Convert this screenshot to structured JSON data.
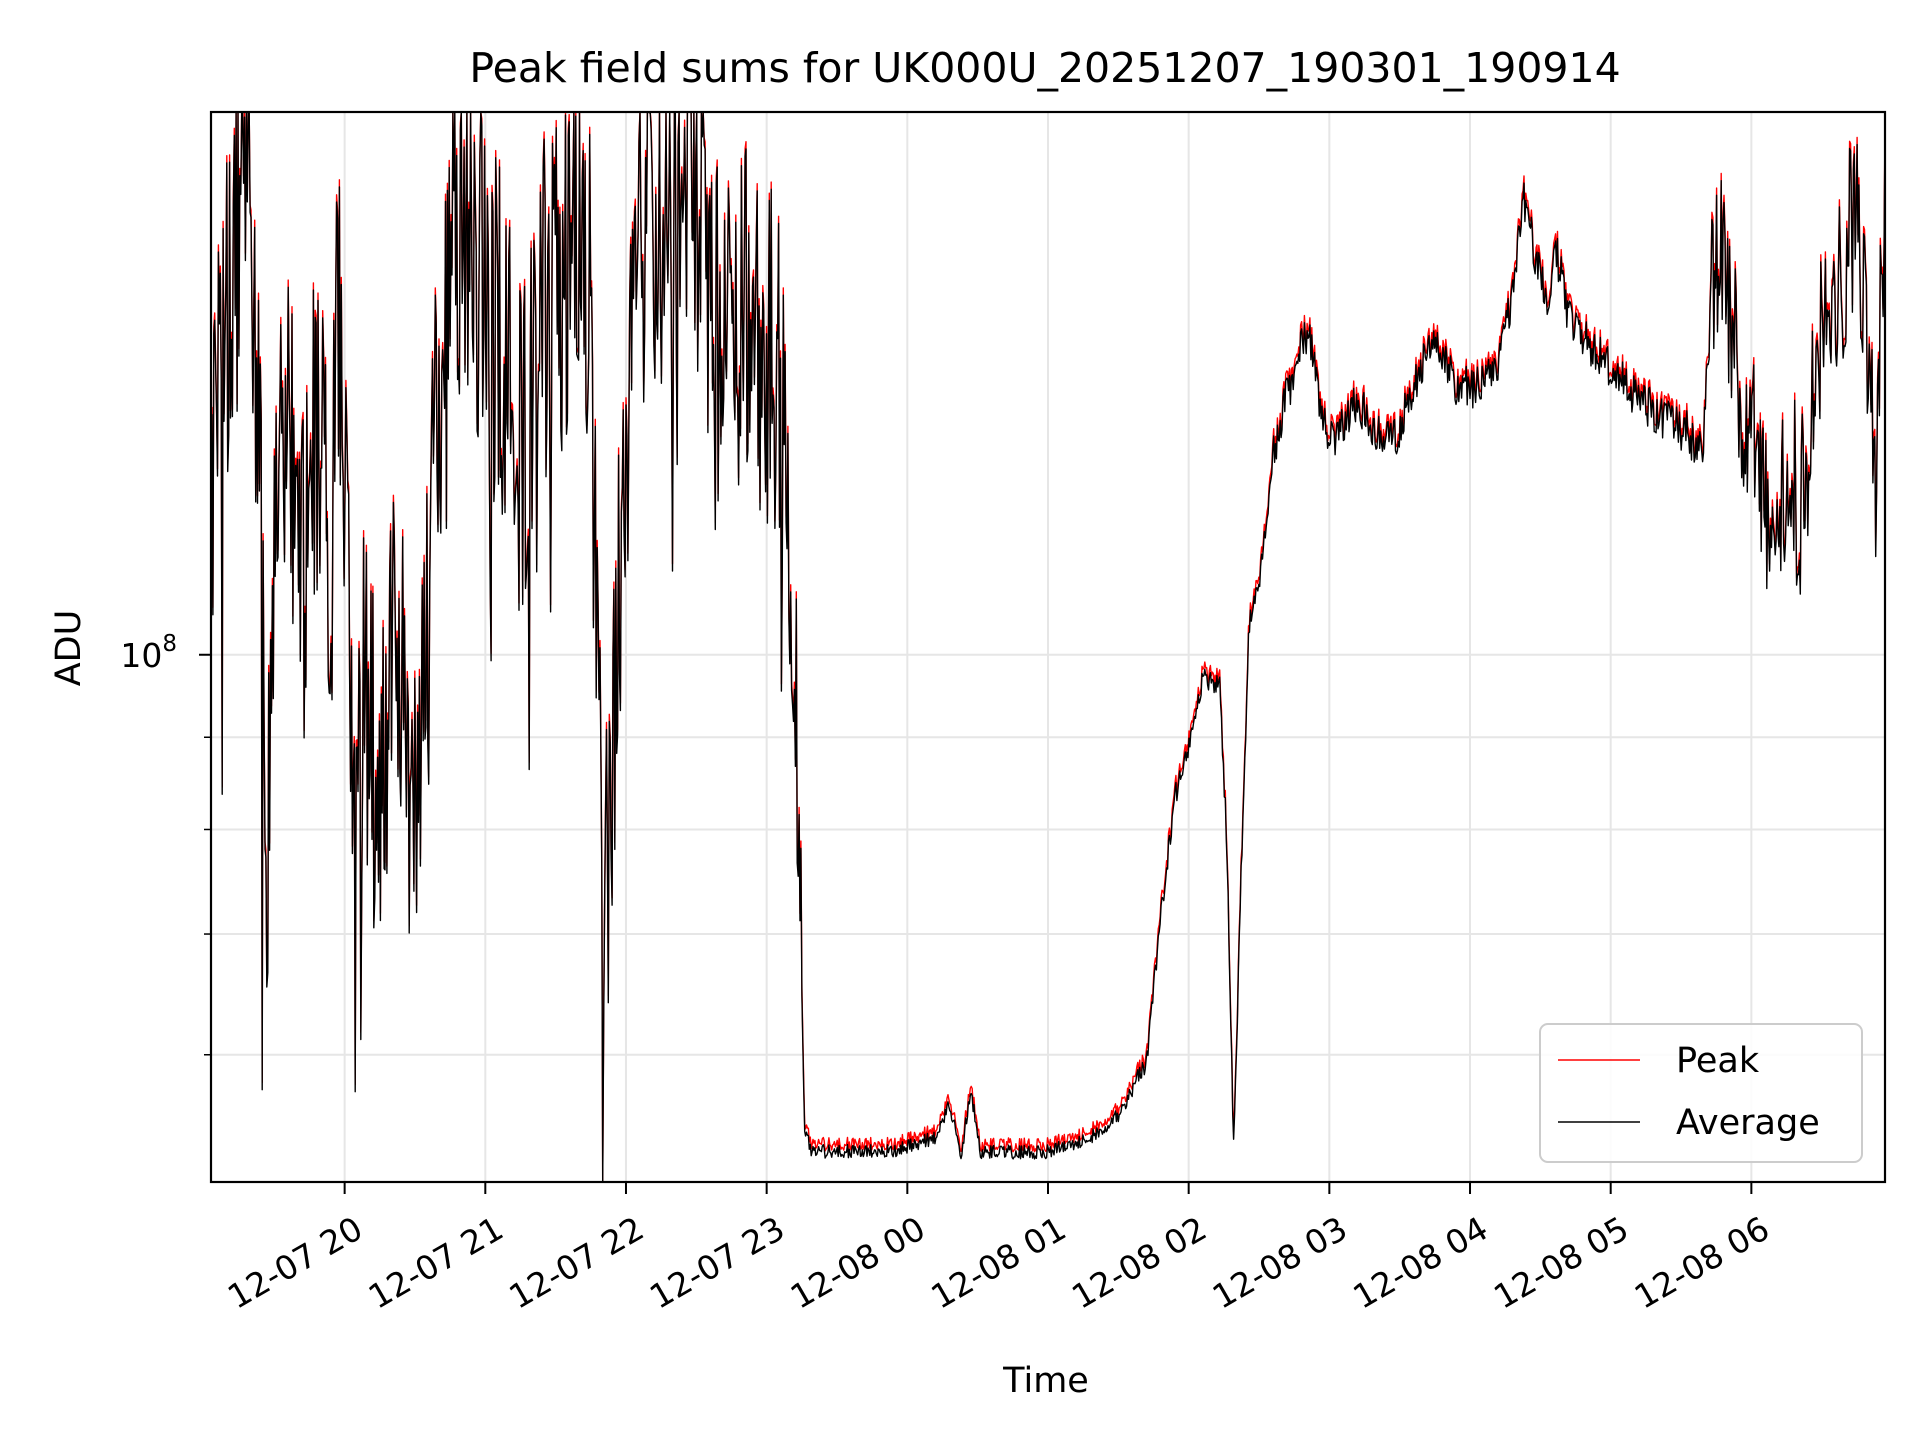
{
  "chart_data": {
    "type": "line",
    "title": "Peak field sums for UK000U_20251207_190301_190914",
    "xlabel": "Time",
    "ylabel": "ADU",
    "yscale": "log",
    "ylim": [
      51000000,
      200000000
    ],
    "xlim_hours": [
      19.05,
      30.95
    ],
    "grid": true,
    "legend_position": "lower-right",
    "x_ticks": [
      {
        "hour": 20,
        "label": "12-07 20"
      },
      {
        "hour": 21,
        "label": "12-07 21"
      },
      {
        "hour": 22,
        "label": "12-07 22"
      },
      {
        "hour": 23,
        "label": "12-07 23"
      },
      {
        "hour": 24,
        "label": "12-08 00"
      },
      {
        "hour": 25,
        "label": "12-08 01"
      },
      {
        "hour": 26,
        "label": "12-08 02"
      },
      {
        "hour": 27,
        "label": "12-08 03"
      },
      {
        "hour": 28,
        "label": "12-08 04"
      },
      {
        "hour": 29,
        "label": "12-08 05"
      },
      {
        "hour": 30,
        "label": "12-08 06"
      }
    ],
    "y_major_ticks": [
      {
        "value": 100000000,
        "label_base": "10",
        "label_exp": "8"
      }
    ],
    "y_minor_ticks": [
      60000000,
      70000000,
      80000000,
      90000000
    ],
    "series": [
      {
        "name": "Peak",
        "color": "#ff0000",
        "offset": 0.0
      },
      {
        "name": "Average",
        "color": "#000000",
        "offset": -0.004
      }
    ],
    "profile": [
      [
        19.05,
        120000000.0
      ],
      [
        19.1,
        135000000.0
      ],
      [
        19.15,
        155000000.0
      ],
      [
        19.2,
        165000000.0
      ],
      [
        19.25,
        185000000.0
      ],
      [
        19.3,
        190000000.0
      ],
      [
        19.35,
        170000000.0
      ],
      [
        19.4,
        120000000.0
      ],
      [
        19.45,
        75000000.0
      ],
      [
        19.5,
        105000000.0
      ],
      [
        19.55,
        130000000.0
      ],
      [
        19.6,
        140000000.0
      ],
      [
        19.7,
        110000000.0
      ],
      [
        19.8,
        135000000.0
      ],
      [
        19.9,
        110000000.0
      ],
      [
        19.95,
        155000000.0
      ],
      [
        20.0,
        125000000.0
      ],
      [
        20.05,
        85000000.0
      ],
      [
        20.15,
        95000000.0
      ],
      [
        20.25,
        80000000.0
      ],
      [
        20.35,
        110000000.0
      ],
      [
        20.45,
        85000000.0
      ],
      [
        20.55,
        95000000.0
      ],
      [
        20.65,
        130000000.0
      ],
      [
        20.75,
        170000000.0
      ],
      [
        20.85,
        180000000.0
      ],
      [
        20.95,
        165000000.0
      ],
      [
        21.05,
        155000000.0
      ],
      [
        21.15,
        145000000.0
      ],
      [
        21.25,
        130000000.0
      ],
      [
        21.35,
        150000000.0
      ],
      [
        21.45,
        160000000.0
      ],
      [
        21.55,
        165000000.0
      ],
      [
        21.65,
        170000000.0
      ],
      [
        21.75,
        155000000.0
      ],
      [
        21.8,
        95000000.0
      ],
      [
        21.85,
        70000000.0
      ],
      [
        21.9,
        90000000.0
      ],
      [
        21.95,
        105000000.0
      ],
      [
        22.05,
        165000000.0
      ],
      [
        22.15,
        175000000.0
      ],
      [
        22.25,
        165000000.0
      ],
      [
        22.35,
        180000000.0
      ],
      [
        22.45,
        190000000.0
      ],
      [
        22.55,
        175000000.0
      ],
      [
        22.65,
        150000000.0
      ],
      [
        22.75,
        145000000.0
      ],
      [
        22.85,
        155000000.0
      ],
      [
        22.95,
        145000000.0
      ],
      [
        23.05,
        150000000.0
      ],
      [
        23.15,
        130000000.0
      ],
      [
        23.22,
        85000000.0
      ],
      [
        23.27,
        55000000.0
      ],
      [
        23.32,
        53500000.0
      ],
      [
        23.6,
        53500000.0
      ],
      [
        23.9,
        53500000.0
      ],
      [
        24.2,
        54500000.0
      ],
      [
        24.3,
        57000000.0
      ],
      [
        24.38,
        53000000.0
      ],
      [
        24.45,
        58000000.0
      ],
      [
        24.52,
        53500000.0
      ],
      [
        25.0,
        53500000.0
      ],
      [
        25.3,
        54500000.0
      ],
      [
        25.5,
        56000000.0
      ],
      [
        25.7,
        60000000.0
      ],
      [
        25.8,
        72000000.0
      ],
      [
        25.9,
        84000000.0
      ],
      [
        26.0,
        90000000.0
      ],
      [
        26.1,
        98000000.0
      ],
      [
        26.22,
        97000000.0
      ],
      [
        26.27,
        80000000.0
      ],
      [
        26.32,
        53500000.0
      ],
      [
        26.37,
        75000000.0
      ],
      [
        26.43,
        105000000.0
      ],
      [
        26.5,
        110000000.0
      ],
      [
        26.6,
        130000000.0
      ],
      [
        26.65,
        136000000.0
      ],
      [
        26.75,
        145000000.0
      ],
      [
        26.82,
        152000000.0
      ],
      [
        26.88,
        150000000.0
      ],
      [
        26.95,
        136000000.0
      ],
      [
        27.05,
        133000000.0
      ],
      [
        27.2,
        140000000.0
      ],
      [
        27.3,
        135000000.0
      ],
      [
        27.45,
        132000000.0
      ],
      [
        27.55,
        138000000.0
      ],
      [
        27.65,
        145000000.0
      ],
      [
        27.73,
        153000000.0
      ],
      [
        27.8,
        148000000.0
      ],
      [
        27.88,
        143000000.0
      ],
      [
        28.0,
        142000000.0
      ],
      [
        28.1,
        143000000.0
      ],
      [
        28.2,
        145000000.0
      ],
      [
        28.3,
        160000000.0
      ],
      [
        28.38,
        180000000.0
      ],
      [
        28.45,
        170000000.0
      ],
      [
        28.55,
        160000000.0
      ],
      [
        28.62,
        168000000.0
      ],
      [
        28.7,
        155000000.0
      ],
      [
        28.85,
        150000000.0
      ],
      [
        29.0,
        146000000.0
      ],
      [
        29.2,
        140000000.0
      ],
      [
        29.4,
        136000000.0
      ],
      [
        29.55,
        134000000.0
      ],
      [
        29.65,
        130000000.0
      ],
      [
        29.72,
        158000000.0
      ],
      [
        29.8,
        168000000.0
      ],
      [
        29.9,
        145000000.0
      ],
      [
        30.0,
        135000000.0
      ],
      [
        30.1,
        120000000.0
      ],
      [
        30.18,
        125000000.0
      ],
      [
        30.28,
        128000000.0
      ],
      [
        30.35,
        120000000.0
      ],
      [
        30.45,
        142000000.0
      ],
      [
        30.55,
        158000000.0
      ],
      [
        30.65,
        165000000.0
      ],
      [
        30.75,
        180000000.0
      ],
      [
        30.82,
        155000000.0
      ],
      [
        30.88,
        125000000.0
      ],
      [
        30.95,
        185000000.0
      ]
    ]
  }
}
